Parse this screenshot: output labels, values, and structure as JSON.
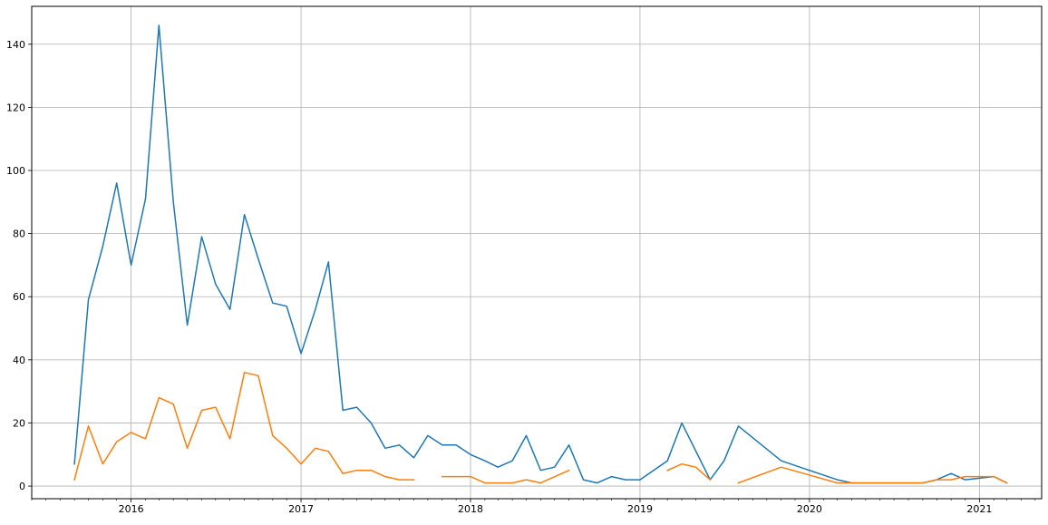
{
  "chart_data": {
    "type": "line",
    "title": "",
    "xlabel": "",
    "ylabel": "",
    "grid": true,
    "x_axis_type": "date",
    "xlim": [
      "2015-06-01",
      "2021-05-15"
    ],
    "ylim": [
      -4,
      152
    ],
    "x_ticks": [
      {
        "date": "2016-01-01",
        "label": "2016"
      },
      {
        "date": "2017-01-01",
        "label": "2017"
      },
      {
        "date": "2018-01-01",
        "label": "2018"
      },
      {
        "date": "2019-01-01",
        "label": "2019"
      },
      {
        "date": "2020-01-01",
        "label": "2020"
      },
      {
        "date": "2021-01-01",
        "label": "2021"
      }
    ],
    "y_ticks": [
      0,
      20,
      40,
      60,
      80,
      100,
      120,
      140
    ],
    "series": [
      {
        "color": "#1f77b4",
        "points": [
          [
            "2015-09-01",
            7
          ],
          [
            "2015-10-01",
            59
          ],
          [
            "2015-11-01",
            76
          ],
          [
            "2015-12-01",
            96
          ],
          [
            "2016-01-01",
            70
          ],
          [
            "2016-02-01",
            91
          ],
          [
            "2016-03-01",
            146
          ],
          [
            "2016-04-01",
            90
          ],
          [
            "2016-05-01",
            51
          ],
          [
            "2016-06-01",
            79
          ],
          [
            "2016-07-01",
            64
          ],
          [
            "2016-08-01",
            56
          ],
          [
            "2016-09-01",
            86
          ],
          [
            "2016-10-01",
            72
          ],
          [
            "2016-11-01",
            58
          ],
          [
            "2016-12-01",
            57
          ],
          [
            "2017-01-01",
            42
          ],
          [
            "2017-02-01",
            56
          ],
          [
            "2017-03-01",
            71
          ],
          [
            "2017-04-01",
            24
          ],
          [
            "2017-05-01",
            25
          ],
          [
            "2017-06-01",
            20
          ],
          [
            "2017-07-01",
            12
          ],
          [
            "2017-08-01",
            13
          ],
          [
            "2017-09-01",
            9
          ],
          [
            "2017-10-01",
            16
          ],
          [
            "2017-11-01",
            13
          ],
          [
            "2017-12-01",
            13
          ],
          [
            "2018-01-01",
            10
          ],
          [
            "2018-02-01",
            8
          ],
          [
            "2018-03-01",
            6
          ],
          [
            "2018-04-01",
            8
          ],
          [
            "2018-05-01",
            16
          ],
          [
            "2018-06-01",
            5
          ],
          [
            "2018-07-01",
            6
          ],
          [
            "2018-08-01",
            13
          ],
          [
            "2018-09-01",
            2
          ],
          [
            "2018-10-01",
            1
          ],
          [
            "2018-11-01",
            3
          ],
          [
            "2018-12-01",
            2
          ],
          [
            "2019-01-01",
            2
          ],
          [
            "2019-03-01",
            8
          ],
          [
            "2019-04-01",
            20
          ],
          [
            "2019-06-01",
            2
          ],
          [
            "2019-07-01",
            8
          ],
          [
            "2019-08-01",
            19
          ],
          [
            "2019-11-01",
            8
          ],
          [
            "2020-03-01",
            2
          ],
          [
            "2020-04-01",
            1
          ],
          [
            "2020-09-01",
            1
          ],
          [
            "2020-10-01",
            2
          ],
          [
            "2020-11-01",
            4
          ],
          [
            "2020-12-01",
            2
          ],
          [
            "2021-02-01",
            3
          ],
          [
            "2021-03-01",
            1
          ]
        ]
      },
      {
        "color": "#ff7f0e",
        "segments": [
          [
            [
              "2015-09-01",
              2
            ],
            [
              "2015-10-01",
              19
            ],
            [
              "2015-11-01",
              7
            ],
            [
              "2015-12-01",
              14
            ],
            [
              "2016-01-01",
              17
            ],
            [
              "2016-02-01",
              15
            ],
            [
              "2016-03-01",
              28
            ],
            [
              "2016-04-01",
              26
            ],
            [
              "2016-05-01",
              12
            ],
            [
              "2016-06-01",
              24
            ],
            [
              "2016-07-01",
              25
            ],
            [
              "2016-08-01",
              15
            ],
            [
              "2016-09-01",
              36
            ],
            [
              "2016-10-01",
              35
            ],
            [
              "2016-11-01",
              16
            ],
            [
              "2016-12-01",
              12
            ],
            [
              "2017-01-01",
              7
            ],
            [
              "2017-02-01",
              12
            ],
            [
              "2017-03-01",
              11
            ],
            [
              "2017-04-01",
              4
            ],
            [
              "2017-05-01",
              5
            ],
            [
              "2017-06-01",
              5
            ],
            [
              "2017-07-01",
              3
            ],
            [
              "2017-08-01",
              2
            ],
            [
              "2017-09-01",
              2
            ]
          ],
          [
            [
              "2017-11-01",
              3
            ],
            [
              "2017-12-01",
              3
            ],
            [
              "2018-01-01",
              3
            ],
            [
              "2018-02-01",
              1
            ],
            [
              "2018-03-01",
              1
            ],
            [
              "2018-04-01",
              1
            ],
            [
              "2018-05-01",
              2
            ],
            [
              "2018-06-01",
              1
            ],
            [
              "2018-08-01",
              5
            ]
          ],
          [
            [
              "2019-03-01",
              5
            ],
            [
              "2019-04-01",
              7
            ],
            [
              "2019-05-01",
              6
            ],
            [
              "2019-06-01",
              2
            ]
          ],
          [
            [
              "2019-08-01",
              1
            ],
            [
              "2019-11-01",
              6
            ],
            [
              "2020-03-01",
              1
            ],
            [
              "2020-04-01",
              1
            ],
            [
              "2020-09-01",
              1
            ],
            [
              "2020-10-01",
              2
            ],
            [
              "2020-11-01",
              2
            ],
            [
              "2020-12-01",
              3
            ],
            [
              "2021-02-01",
              3
            ],
            [
              "2021-03-01",
              1
            ]
          ]
        ]
      }
    ]
  }
}
